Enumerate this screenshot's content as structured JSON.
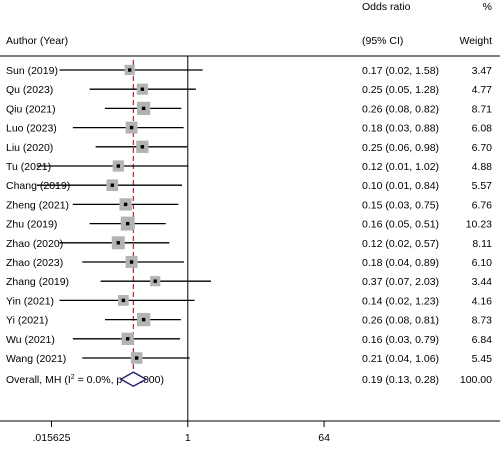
{
  "header": {
    "study_col": "Author (Year)",
    "or_label": "Odds ratio",
    "ci_label": "(95% CI)",
    "pct_label": "%",
    "weight_label": "Weight"
  },
  "chart_data": {
    "type": "forest",
    "x_scale": "log2",
    "xlim": [
      0.0039,
      150
    ],
    "null_value": 1,
    "x_ticks": [
      {
        "value": 0.015625,
        "label": ".015625"
      },
      {
        "value": 1,
        "label": "1"
      },
      {
        "value": 64,
        "label": "64"
      }
    ],
    "studies": [
      {
        "label": "Sun (2019)",
        "or": 0.17,
        "lo": 0.02,
        "hi": 1.58,
        "ci_text": "0.17 (0.02, 1.58)",
        "weight": 3.47,
        "weight_text": "3.47"
      },
      {
        "label": "Qu (2023)",
        "or": 0.25,
        "lo": 0.05,
        "hi": 1.28,
        "ci_text": "0.25 (0.05, 1.28)",
        "weight": 4.77,
        "weight_text": "4.77"
      },
      {
        "label": "Qiu (2021)",
        "or": 0.26,
        "lo": 0.08,
        "hi": 0.82,
        "ci_text": "0.26 (0.08, 0.82)",
        "weight": 8.71,
        "weight_text": "8.71"
      },
      {
        "label": "Luo (2023)",
        "or": 0.18,
        "lo": 0.03,
        "hi": 0.88,
        "ci_text": "0.18 (0.03, 0.88)",
        "weight": 6.08,
        "weight_text": "6.08"
      },
      {
        "label": "Liu (2020)",
        "or": 0.25,
        "lo": 0.06,
        "hi": 0.98,
        "ci_text": "0.25 (0.06, 0.98)",
        "weight": 6.7,
        "weight_text": "6.70"
      },
      {
        "label": "Tu (2021)",
        "or": 0.12,
        "lo": 0.01,
        "hi": 1.02,
        "ci_text": "0.12 (0.01, 1.02)",
        "weight": 4.88,
        "weight_text": "4.88"
      },
      {
        "label": "Chang (2019)",
        "or": 0.1,
        "lo": 0.01,
        "hi": 0.84,
        "ci_text": "0.10 (0.01, 0.84)",
        "weight": 5.57,
        "weight_text": "5.57"
      },
      {
        "label": "Zheng (2021)",
        "or": 0.15,
        "lo": 0.03,
        "hi": 0.75,
        "ci_text": "0.15 (0.03, 0.75)",
        "weight": 6.76,
        "weight_text": "6.76"
      },
      {
        "label": "Zhu (2019)",
        "or": 0.16,
        "lo": 0.05,
        "hi": 0.51,
        "ci_text": "0.16 (0.05, 0.51)",
        "weight": 10.23,
        "weight_text": "10.23"
      },
      {
        "label": "Zhao (2020)",
        "or": 0.12,
        "lo": 0.02,
        "hi": 0.57,
        "ci_text": "0.12 (0.02, 0.57)",
        "weight": 8.11,
        "weight_text": "8.11"
      },
      {
        "label": "Zhao (2023)",
        "or": 0.18,
        "lo": 0.04,
        "hi": 0.89,
        "ci_text": "0.18 (0.04, 0.89)",
        "weight": 6.1,
        "weight_text": "6.10"
      },
      {
        "label": "Zhang (2019)",
        "or": 0.37,
        "lo": 0.07,
        "hi": 2.03,
        "ci_text": "0.37 (0.07, 2.03)",
        "weight": 3.44,
        "weight_text": "3.44"
      },
      {
        "label": "Yin (2021)",
        "or": 0.14,
        "lo": 0.02,
        "hi": 1.23,
        "ci_text": "0.14 (0.02, 1.23)",
        "weight": 4.16,
        "weight_text": "4.16"
      },
      {
        "label": "Yi (2021)",
        "or": 0.26,
        "lo": 0.08,
        "hi": 0.81,
        "ci_text": "0.26 (0.08, 0.81)",
        "weight": 8.73,
        "weight_text": "8.73"
      },
      {
        "label": "Wu (2021)",
        "or": 0.16,
        "lo": 0.03,
        "hi": 0.79,
        "ci_text": "0.16 (0.03, 0.79)",
        "weight": 6.84,
        "weight_text": "6.84"
      },
      {
        "label": "Wang (2021)",
        "or": 0.21,
        "lo": 0.04,
        "hi": 1.06,
        "ci_text": "0.21 (0.04, 1.06)",
        "weight": 5.45,
        "weight_text": "5.45"
      }
    ],
    "overall": {
      "label_prefix": "Overall, MH (I",
      "label_sup": "2",
      "label_suffix": " = 0.0%, p = 1.000)",
      "or": 0.19,
      "lo": 0.13,
      "hi": 0.28,
      "ci_text": "0.19 (0.13, 0.28)",
      "weight_text": "100.00"
    },
    "colors": {
      "ci_line": "#000000",
      "weight_box": "#b3b3b3",
      "point": "#000000",
      "overall_line": "#b22222",
      "diamond": "#1f1f6e"
    }
  }
}
